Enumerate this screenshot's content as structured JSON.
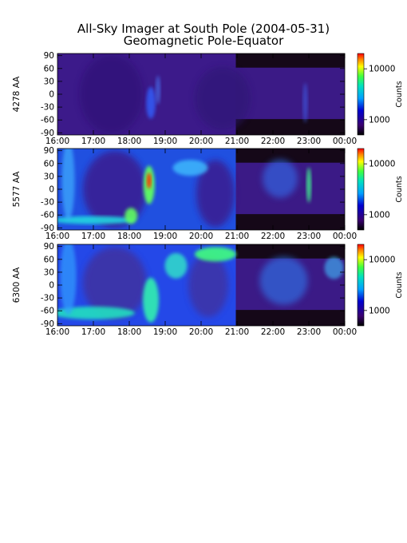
{
  "chart_data": [
    {
      "type": "heatmap",
      "title": "All-Sky Imager at South Pole (2004-05-31)",
      "subtitle": "Geomagnetic Pole-Equator",
      "ylabel": "4278 AA",
      "colorbar_label": "Counts",
      "colorbar_ticks": [
        "10000",
        "1000"
      ],
      "colorscale": "log",
      "colorbar_range": [
        500,
        20000
      ],
      "xlim": [
        "16:00",
        "00:00"
      ],
      "x_ticks": [
        "16:00",
        "17:00",
        "18:00",
        "19:00",
        "20:00",
        "21:00",
        "22:00",
        "23:00",
        "00:00"
      ],
      "ylim": [
        -95,
        95
      ],
      "y_ticks": [
        "90",
        "60",
        "30",
        "0",
        "-30",
        "-60",
        "-90"
      ],
      "no_data_end": "20:58",
      "features": [
        {
          "label": "weak arc",
          "x": "18:35",
          "y": -20,
          "level": "low"
        }
      ]
    },
    {
      "type": "heatmap",
      "ylabel": "5577 AA",
      "colorbar_label": "Counts",
      "colorbar_ticks": [
        "10000",
        "1000"
      ],
      "colorscale": "log",
      "colorbar_range": [
        500,
        20000
      ],
      "xlim": [
        "16:00",
        "00:00"
      ],
      "x_ticks": [
        "16:00",
        "17:00",
        "18:00",
        "19:00",
        "20:00",
        "21:00",
        "22:00",
        "23:00",
        "00:00"
      ],
      "ylim": [
        -95,
        95
      ],
      "y_ticks": [
        "90",
        "60",
        "30",
        "0",
        "-30",
        "-60",
        "-90"
      ],
      "no_data_end": "20:58",
      "features": [
        {
          "label": "auroral oval",
          "x": "16:30",
          "y": -70,
          "level": "medium"
        },
        {
          "label": "peak",
          "x": "18:35",
          "y": 20,
          "level": "high"
        }
      ]
    },
    {
      "type": "heatmap",
      "ylabel": "6300 AA",
      "colorbar_label": "Counts",
      "colorbar_ticks": [
        "10000",
        "1000"
      ],
      "colorscale": "log",
      "colorbar_range": [
        500,
        20000
      ],
      "xlim": [
        "16:00",
        "00:00"
      ],
      "x_ticks": [
        "16:00",
        "17:00",
        "18:00",
        "19:00",
        "20:00",
        "21:00",
        "22:00",
        "23:00",
        "00:00"
      ],
      "ylim": [
        -95,
        95
      ],
      "y_ticks": [
        "90",
        "60",
        "30",
        "0",
        "-30",
        "-60",
        "-90"
      ],
      "no_data_end": "20:58",
      "features": [
        {
          "label": "auroral oval",
          "x": "17:00",
          "y": -60,
          "level": "high"
        },
        {
          "label": "poleward arc",
          "x": "20:30",
          "y": 60,
          "level": "high"
        }
      ]
    }
  ]
}
